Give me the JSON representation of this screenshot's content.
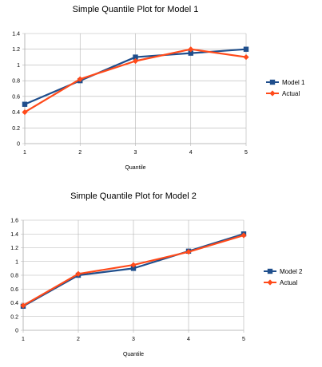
{
  "chart_data": [
    {
      "type": "line",
      "title": "Simple Quantile Plot for Model 1",
      "xlabel": "Quantile",
      "ylabel": "",
      "x": [
        1,
        2,
        3,
        4,
        5
      ],
      "xlim": [
        1,
        5
      ],
      "ylim": [
        0,
        1.4
      ],
      "yticks": [
        0,
        0.2,
        0.4,
        0.6,
        0.8,
        1,
        1.2,
        1.4
      ],
      "grid": true,
      "legend_position": "right",
      "series": [
        {
          "name": "Model 1",
          "values": [
            0.5,
            0.8,
            1.1,
            1.15,
            1.2
          ],
          "color": "#1f4e8c",
          "marker": "square"
        },
        {
          "name": "Actual",
          "values": [
            0.4,
            0.82,
            1.05,
            1.2,
            1.1
          ],
          "color": "#ff4a1a",
          "marker": "diamond"
        }
      ]
    },
    {
      "type": "line",
      "title": "Simple Quantile Plot for Model 2",
      "xlabel": "Quantile",
      "ylabel": "",
      "x": [
        1,
        2,
        3,
        4,
        5
      ],
      "xlim": [
        1,
        5
      ],
      "ylim": [
        0,
        1.6
      ],
      "yticks": [
        0,
        0.2,
        0.4,
        0.6,
        0.8,
        1,
        1.2,
        1.4,
        1.6
      ],
      "grid": true,
      "legend_position": "right",
      "series": [
        {
          "name": "Model 2",
          "values": [
            0.35,
            0.8,
            0.9,
            1.15,
            1.4
          ],
          "color": "#1f4e8c",
          "marker": "square"
        },
        {
          "name": "Actual",
          "values": [
            0.36,
            0.82,
            0.95,
            1.14,
            1.38
          ],
          "color": "#ff4a1a",
          "marker": "diamond"
        }
      ]
    }
  ]
}
